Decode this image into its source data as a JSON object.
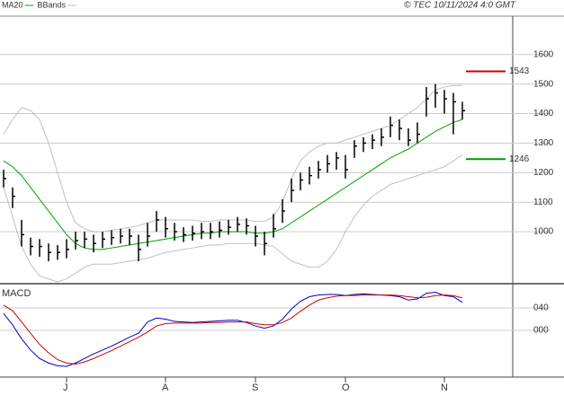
{
  "header": {
    "stamp": "© TEC 10/11/2024 4:0 GMT"
  },
  "chart_data": [
    {
      "type": "ohlc",
      "categories": [
        null,
        null,
        null,
        null,
        null,
        null,
        null,
        "J",
        null,
        null,
        null,
        null,
        null,
        null,
        null,
        null,
        null,
        null,
        "A",
        null,
        null,
        null,
        null,
        null,
        null,
        null,
        null,
        null,
        "S",
        null,
        null,
        null,
        null,
        null,
        null,
        null,
        null,
        null,
        "O",
        null,
        null,
        null,
        null,
        null,
        null,
        null,
        null,
        null,
        null,
        "N",
        null,
        null
      ],
      "close": [
        1180,
        1120,
        990,
        950,
        950,
        930,
        930,
        940,
        970,
        975,
        960,
        975,
        980,
        985,
        985,
        940,
        985,
        1040,
        1010,
        1000,
        990,
        995,
        1000,
        1000,
        1005,
        1015,
        1025,
        1020,
        985,
        960,
        1010,
        1070,
        1140,
        1175,
        1190,
        1210,
        1230,
        1250,
        1210,
        1290,
        1300,
        1310,
        1320,
        1360,
        1350,
        1310,
        1330,
        1450,
        1470,
        1450,
        1440,
        1410
      ],
      "high": [
        1210,
        1150,
        1040,
        980,
        975,
        960,
        955,
        975,
        1000,
        1000,
        990,
        1000,
        1005,
        1010,
        1010,
        990,
        1030,
        1070,
        1050,
        1030,
        1015,
        1020,
        1030,
        1030,
        1035,
        1040,
        1050,
        1045,
        1020,
        1000,
        1060,
        1110,
        1180,
        1200,
        1220,
        1240,
        1260,
        1270,
        1260,
        1310,
        1320,
        1330,
        1350,
        1390,
        1380,
        1350,
        1370,
        1490,
        1500,
        1480,
        1470,
        1440
      ],
      "low": [
        1150,
        1080,
        950,
        920,
        915,
        900,
        905,
        910,
        940,
        945,
        930,
        945,
        955,
        960,
        955,
        900,
        950,
        1000,
        980,
        970,
        965,
        970,
        975,
        975,
        980,
        990,
        1000,
        990,
        950,
        920,
        980,
        1030,
        1100,
        1140,
        1160,
        1180,
        1200,
        1210,
        1180,
        1250,
        1270,
        1280,
        1290,
        1320,
        1310,
        1290,
        1300,
        1390,
        1420,
        1400,
        1330,
        1380
      ],
      "series": [
        {
          "name": "MA20",
          "color": "#00a000",
          "values": [
            1240,
            1220,
            1190,
            1150,
            1110,
            1070,
            1030,
            990,
            960,
            945,
            940,
            940,
            945,
            950,
            955,
            960,
            965,
            970,
            975,
            980,
            985,
            990,
            995,
            995,
            1000,
            1000,
            1000,
            1000,
            995,
            995,
            1000,
            1010,
            1030,
            1050,
            1070,
            1090,
            1110,
            1130,
            1150,
            1170,
            1190,
            1210,
            1230,
            1250,
            1265,
            1280,
            1300,
            1320,
            1340,
            1355,
            1370,
            1380
          ]
        },
        {
          "name": "BBands",
          "color": "#c0c0c0",
          "upper": [
            1330,
            1380,
            1420,
            1410,
            1380,
            1300,
            1200,
            1100,
            1030,
            1010,
            1000,
            1000,
            1005,
            1010,
            1015,
            1020,
            1030,
            1040,
            1040,
            1040,
            1040,
            1040,
            1035,
            1035,
            1040,
            1040,
            1040,
            1040,
            1035,
            1035,
            1050,
            1100,
            1180,
            1240,
            1270,
            1290,
            1300,
            1300,
            1310,
            1320,
            1330,
            1340,
            1350,
            1360,
            1380,
            1400,
            1420,
            1450,
            1480,
            1490,
            1495,
            1495
          ],
          "lower": [
            1150,
            1050,
            950,
            890,
            850,
            840,
            830,
            840,
            860,
            880,
            890,
            890,
            890,
            895,
            900,
            905,
            910,
            920,
            930,
            935,
            940,
            945,
            950,
            955,
            955,
            960,
            960,
            960,
            960,
            955,
            950,
            925,
            900,
            890,
            880,
            880,
            900,
            940,
            1000,
            1050,
            1090,
            1120,
            1140,
            1160,
            1170,
            1180,
            1190,
            1200,
            1210,
            1220,
            1240,
            1260
          ]
        }
      ],
      "bar_color": "#000000",
      "levels": [
        {
          "value": 1543,
          "color": "#cc0000"
        },
        {
          "value": 1246,
          "color": "#009900"
        }
      ],
      "ylim": [
        827,
        1730
      ],
      "yticks": [
        1000,
        1100,
        1200,
        1300,
        1400,
        1500,
        1600
      ],
      "grid": true
    },
    {
      "type": "line",
      "title": "MACD",
      "series": [
        {
          "color": "#0000cc",
          "values": [
            30,
            10,
            -15,
            -35,
            -50,
            -58,
            -63,
            -64,
            -58,
            -50,
            -42,
            -35,
            -28,
            -20,
            -12,
            -5,
            15,
            22,
            20,
            16,
            15,
            14,
            15,
            16,
            17,
            18,
            18,
            14,
            8,
            4,
            8,
            20,
            38,
            52,
            60,
            63,
            64,
            64,
            62,
            64,
            65,
            64,
            63,
            62,
            60,
            54,
            56,
            66,
            68,
            62,
            60,
            50
          ]
        },
        {
          "color": "#cc0000",
          "values": [
            45,
            35,
            15,
            -5,
            -25,
            -40,
            -52,
            -58,
            -60,
            -56,
            -50,
            -43,
            -36,
            -28,
            -20,
            -12,
            -3,
            8,
            12,
            13,
            13,
            13,
            13,
            14,
            14,
            15,
            15,
            15,
            12,
            10,
            10,
            14,
            22,
            34,
            45,
            54,
            58,
            61,
            62,
            62,
            63,
            63,
            63,
            63,
            62,
            60,
            58,
            59,
            62,
            63,
            62,
            58
          ]
        }
      ],
      "ylim": [
        -83,
        80
      ],
      "yticks": [
        {
          "value": 40,
          "label": "040"
        },
        {
          "value": 0,
          "label": "000"
        }
      ],
      "grid": true
    }
  ]
}
